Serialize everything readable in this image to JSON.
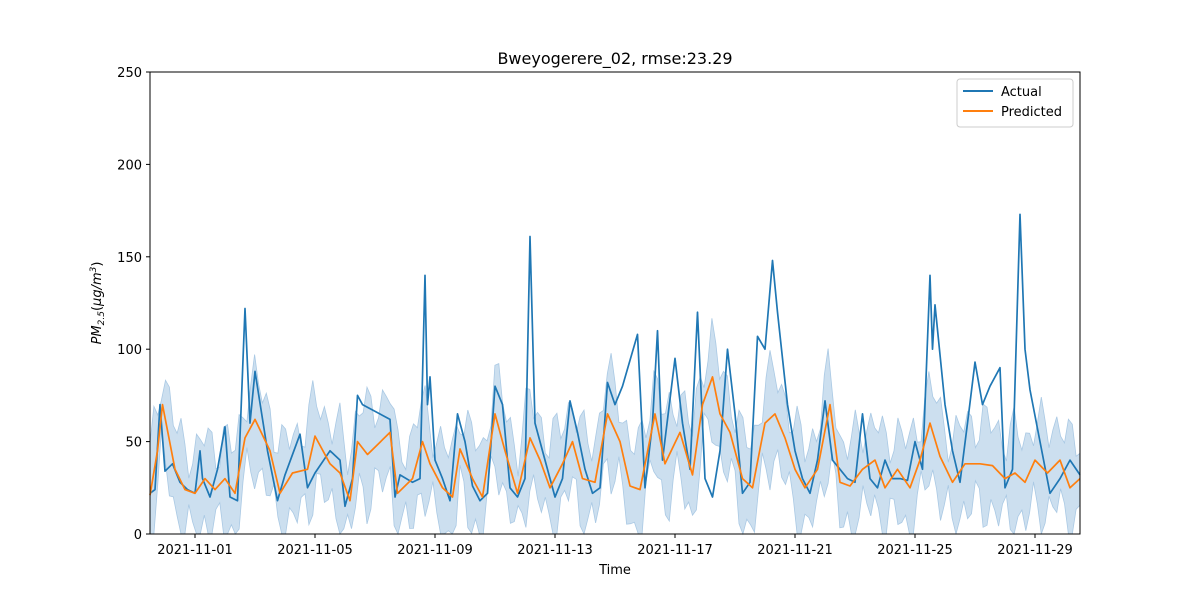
{
  "chart_data": {
    "type": "line",
    "title": "Bweyogerere_02, rmse:23.29",
    "xlabel": "Time",
    "ylabel": "PM_2.5 (µg/m³)",
    "ylabel_parts": {
      "main": "PM",
      "sub": "2.5",
      "unit_open": "(",
      "unit": "μg/m",
      "sup": "3",
      "unit_close": ")"
    },
    "xlim": [
      "2021-10-30T12:00",
      "2021-11-30T12:00"
    ],
    "ylim": [
      0,
      250
    ],
    "yticks": [
      0,
      50,
      100,
      150,
      200,
      250
    ],
    "xticks": [
      "2021-11-01",
      "2021-11-05",
      "2021-11-09",
      "2021-11-13",
      "2021-11-17",
      "2021-11-21",
      "2021-11-25",
      "2021-11-29"
    ],
    "legend": {
      "placement": "top-right",
      "entries": [
        "Actual",
        "Predicted"
      ]
    },
    "grid": false,
    "colors": {
      "actual": "#1f77b4",
      "predicted": "#ff7f0e",
      "band": "#aac9e4"
    },
    "series": [
      {
        "name": "Actual",
        "points": [
          [
            "2021-10-30T12:00",
            22
          ],
          [
            "2021-10-30T16:00",
            24
          ],
          [
            "2021-10-30T20:00",
            70
          ],
          [
            "2021-10-31T00:00",
            34
          ],
          [
            "2021-10-31T06:00",
            38
          ],
          [
            "2021-10-31T12:00",
            28
          ],
          [
            "2021-10-31T18:00",
            24
          ],
          [
            "2021-11-01T00:00",
            22
          ],
          [
            "2021-11-01T04:00",
            45
          ],
          [
            "2021-11-01T06:00",
            30
          ],
          [
            "2021-11-01T12:00",
            20
          ],
          [
            "2021-11-01T18:00",
            35
          ],
          [
            "2021-11-02T00:00",
            58
          ],
          [
            "2021-11-02T04:00",
            20
          ],
          [
            "2021-11-02T10:00",
            18
          ],
          [
            "2021-11-02T16:00",
            122
          ],
          [
            "2021-11-02T20:00",
            60
          ],
          [
            "2021-11-03T00:00",
            88
          ],
          [
            "2021-11-03T10:00",
            45
          ],
          [
            "2021-11-03T18:00",
            18
          ],
          [
            "2021-11-04T00:00",
            32
          ],
          [
            "2021-11-04T12:00",
            54
          ],
          [
            "2021-11-04T18:00",
            25
          ],
          [
            "2021-11-05T00:00",
            33
          ],
          [
            "2021-11-05T12:00",
            45
          ],
          [
            "2021-11-05T20:00",
            40
          ],
          [
            "2021-11-06T00:00",
            15
          ],
          [
            "2021-11-06T06:00",
            30
          ],
          [
            "2021-11-06T10:00",
            75
          ],
          [
            "2021-11-06T14:00",
            70
          ],
          [
            "2021-11-07T12:00",
            62
          ],
          [
            "2021-11-07T16:00",
            20
          ],
          [
            "2021-11-07T20:00",
            32
          ],
          [
            "2021-11-08T06:00",
            28
          ],
          [
            "2021-11-08T12:00",
            30
          ],
          [
            "2021-11-08T16:00",
            140
          ],
          [
            "2021-11-08T18:00",
            70
          ],
          [
            "2021-11-08T20:00",
            85
          ],
          [
            "2021-11-09T00:00",
            40
          ],
          [
            "2021-11-09T06:00",
            30
          ],
          [
            "2021-11-09T12:00",
            18
          ],
          [
            "2021-11-09T18:00",
            65
          ],
          [
            "2021-11-10T00:00",
            50
          ],
          [
            "2021-11-10T06:00",
            26
          ],
          [
            "2021-11-10T12:00",
            18
          ],
          [
            "2021-11-10T18:00",
            22
          ],
          [
            "2021-11-11T00:00",
            80
          ],
          [
            "2021-11-11T06:00",
            70
          ],
          [
            "2021-11-11T12:00",
            25
          ],
          [
            "2021-11-11T18:00",
            20
          ],
          [
            "2021-11-12T00:00",
            30
          ],
          [
            "2021-11-12T04:00",
            161
          ],
          [
            "2021-11-12T08:00",
            60
          ],
          [
            "2021-11-12T16:00",
            40
          ],
          [
            "2021-11-13T00:00",
            20
          ],
          [
            "2021-11-13T06:00",
            30
          ],
          [
            "2021-11-13T12:00",
            72
          ],
          [
            "2021-11-13T18:00",
            55
          ],
          [
            "2021-11-14T00:00",
            35
          ],
          [
            "2021-11-14T06:00",
            22
          ],
          [
            "2021-11-14T12:00",
            25
          ],
          [
            "2021-11-14T18:00",
            82
          ],
          [
            "2021-11-15T00:00",
            70
          ],
          [
            "2021-11-15T06:00",
            80
          ],
          [
            "2021-11-15T18:00",
            108
          ],
          [
            "2021-11-16T00:00",
            25
          ],
          [
            "2021-11-16T06:00",
            60
          ],
          [
            "2021-11-16T10:00",
            110
          ],
          [
            "2021-11-16T14:00",
            40
          ],
          [
            "2021-11-17T00:00",
            95
          ],
          [
            "2021-11-17T06:00",
            60
          ],
          [
            "2021-11-17T12:00",
            35
          ],
          [
            "2021-11-17T18:00",
            120
          ],
          [
            "2021-11-18T00:00",
            30
          ],
          [
            "2021-11-18T06:00",
            20
          ],
          [
            "2021-11-18T12:00",
            45
          ],
          [
            "2021-11-18T18:00",
            100
          ],
          [
            "2021-11-19T00:00",
            65
          ],
          [
            "2021-11-19T06:00",
            22
          ],
          [
            "2021-11-19T12:00",
            28
          ],
          [
            "2021-11-19T18:00",
            107
          ],
          [
            "2021-11-20T00:00",
            100
          ],
          [
            "2021-11-20T06:00",
            148
          ],
          [
            "2021-11-20T10:00",
            120
          ],
          [
            "2021-11-20T18:00",
            70
          ],
          [
            "2021-11-21T00:00",
            45
          ],
          [
            "2021-11-21T06:00",
            30
          ],
          [
            "2021-11-21T12:00",
            22
          ],
          [
            "2021-11-21T18:00",
            40
          ],
          [
            "2021-11-22T00:00",
            72
          ],
          [
            "2021-11-22T06:00",
            40
          ],
          [
            "2021-11-22T12:00",
            35
          ],
          [
            "2021-11-22T18:00",
            30
          ],
          [
            "2021-11-23T00:00",
            28
          ],
          [
            "2021-11-23T06:00",
            65
          ],
          [
            "2021-11-23T12:00",
            30
          ],
          [
            "2021-11-23T18:00",
            25
          ],
          [
            "2021-11-24T00:00",
            40
          ],
          [
            "2021-11-24T06:00",
            30
          ],
          [
            "2021-11-24T12:00",
            30
          ],
          [
            "2021-11-24T18:00",
            29
          ],
          [
            "2021-11-25T00:00",
            50
          ],
          [
            "2021-11-25T06:00",
            35
          ],
          [
            "2021-11-25T12:00",
            140
          ],
          [
            "2021-11-25T14:00",
            100
          ],
          [
            "2021-11-25T16:00",
            124
          ],
          [
            "2021-11-26T00:00",
            70
          ],
          [
            "2021-11-26T06:00",
            45
          ],
          [
            "2021-11-26T12:00",
            28
          ],
          [
            "2021-11-26T18:00",
            60
          ],
          [
            "2021-11-27T00:00",
            93
          ],
          [
            "2021-11-27T06:00",
            70
          ],
          [
            "2021-11-27T12:00",
            80
          ],
          [
            "2021-11-27T20:00",
            90
          ],
          [
            "2021-11-28T00:00",
            25
          ],
          [
            "2021-11-28T06:00",
            35
          ],
          [
            "2021-11-28T12:00",
            173
          ],
          [
            "2021-11-28T16:00",
            100
          ],
          [
            "2021-11-28T20:00",
            78
          ],
          [
            "2021-11-29T04:00",
            50
          ],
          [
            "2021-11-29T12:00",
            22
          ],
          [
            "2021-11-29T20:00",
            30
          ],
          [
            "2021-11-30T04:00",
            40
          ],
          [
            "2021-11-30T12:00",
            32
          ]
        ]
      },
      {
        "name": "Predicted",
        "points": [
          [
            "2021-10-30T12:00",
            21
          ],
          [
            "2021-10-30T18:00",
            45
          ],
          [
            "2021-10-30T22:00",
            70
          ],
          [
            "2021-10-31T08:00",
            35
          ],
          [
            "2021-10-31T16:00",
            24
          ],
          [
            "2021-11-01T00:00",
            22
          ],
          [
            "2021-11-01T08:00",
            30
          ],
          [
            "2021-11-01T16:00",
            24
          ],
          [
            "2021-11-02T00:00",
            30
          ],
          [
            "2021-11-02T08:00",
            22
          ],
          [
            "2021-11-02T16:00",
            52
          ],
          [
            "2021-11-03T00:00",
            62
          ],
          [
            "2021-11-03T12:00",
            45
          ],
          [
            "2021-11-03T20:00",
            22
          ],
          [
            "2021-11-04T06:00",
            33
          ],
          [
            "2021-11-04T18:00",
            35
          ],
          [
            "2021-11-05T00:00",
            53
          ],
          [
            "2021-11-05T12:00",
            38
          ],
          [
            "2021-11-05T20:00",
            33
          ],
          [
            "2021-11-06T04:00",
            18
          ],
          [
            "2021-11-06T10:00",
            50
          ],
          [
            "2021-11-06T18:00",
            43
          ],
          [
            "2021-11-07T12:00",
            55
          ],
          [
            "2021-11-07T18:00",
            22
          ],
          [
            "2021-11-08T06:00",
            30
          ],
          [
            "2021-11-08T14:00",
            50
          ],
          [
            "2021-11-08T20:00",
            38
          ],
          [
            "2021-11-09T06:00",
            25
          ],
          [
            "2021-11-09T14:00",
            20
          ],
          [
            "2021-11-09T20:00",
            46
          ],
          [
            "2021-11-10T06:00",
            30
          ],
          [
            "2021-11-10T14:00",
            20
          ],
          [
            "2021-11-11T00:00",
            65
          ],
          [
            "2021-11-11T08:00",
            45
          ],
          [
            "2021-11-11T18:00",
            22
          ],
          [
            "2021-11-12T04:00",
            52
          ],
          [
            "2021-11-12T12:00",
            40
          ],
          [
            "2021-11-12T20:00",
            25
          ],
          [
            "2021-11-13T06:00",
            38
          ],
          [
            "2021-11-13T14:00",
            50
          ],
          [
            "2021-11-13T22:00",
            30
          ],
          [
            "2021-11-14T08:00",
            28
          ],
          [
            "2021-11-14T18:00",
            65
          ],
          [
            "2021-11-15T04:00",
            50
          ],
          [
            "2021-11-15T12:00",
            26
          ],
          [
            "2021-11-15T20:00",
            24
          ],
          [
            "2021-11-16T08:00",
            65
          ],
          [
            "2021-11-16T16:00",
            38
          ],
          [
            "2021-11-17T04:00",
            55
          ],
          [
            "2021-11-17T14:00",
            32
          ],
          [
            "2021-11-17T22:00",
            70
          ],
          [
            "2021-11-18T06:00",
            85
          ],
          [
            "2021-11-18T12:00",
            65
          ],
          [
            "2021-11-18T20:00",
            55
          ],
          [
            "2021-11-19T06:00",
            30
          ],
          [
            "2021-11-19T14:00",
            25
          ],
          [
            "2021-11-20T00:00",
            60
          ],
          [
            "2021-11-20T08:00",
            65
          ],
          [
            "2021-11-20T16:00",
            52
          ],
          [
            "2021-11-21T00:00",
            35
          ],
          [
            "2021-11-21T08:00",
            25
          ],
          [
            "2021-11-21T18:00",
            35
          ],
          [
            "2021-11-22T04:00",
            70
          ],
          [
            "2021-11-22T12:00",
            28
          ],
          [
            "2021-11-22T20:00",
            26
          ],
          [
            "2021-11-23T06:00",
            35
          ],
          [
            "2021-11-23T16:00",
            40
          ],
          [
            "2021-11-24T00:00",
            25
          ],
          [
            "2021-11-24T10:00",
            35
          ],
          [
            "2021-11-24T20:00",
            25
          ],
          [
            "2021-11-25T04:00",
            40
          ],
          [
            "2021-11-25T12:00",
            60
          ],
          [
            "2021-11-25T20:00",
            42
          ],
          [
            "2021-11-26T06:00",
            28
          ],
          [
            "2021-11-26T16:00",
            38
          ],
          [
            "2021-11-27T04:00",
            38
          ],
          [
            "2021-11-27T14:00",
            37
          ],
          [
            "2021-11-28T00:00",
            30
          ],
          [
            "2021-11-28T08:00",
            33
          ],
          [
            "2021-11-28T16:00",
            28
          ],
          [
            "2021-11-29T00:00",
            40
          ],
          [
            "2021-11-29T10:00",
            33
          ],
          [
            "2021-11-29T20:00",
            40
          ],
          [
            "2021-11-30T04:00",
            25
          ],
          [
            "2021-11-30T12:00",
            30
          ]
        ]
      }
    ]
  }
}
